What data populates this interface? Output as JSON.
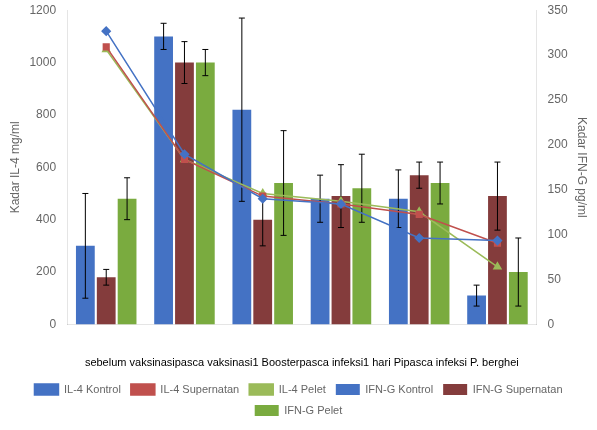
{
  "chart_data": {
    "type": "bar",
    "categories": [
      null,
      null,
      null,
      null,
      null,
      null
    ],
    "annotation": "sebelum vaksinasipasca vaksinasi1 Boosterpasca infeksi1 hari Pipasca infeksi P. berghei",
    "ylabel": "Kadar IL-4 mg/ml",
    "y2label": "Kadar IFN-G pg/ml",
    "ylim": [
      0,
      1200
    ],
    "yticks": [
      0,
      200,
      400,
      600,
      800,
      1000,
      1200
    ],
    "y2lim": [
      0,
      350
    ],
    "y2ticks": [
      0,
      50,
      100,
      150,
      200,
      250,
      300,
      350
    ],
    "grid": false,
    "legend": "bottom",
    "series": [
      {
        "name": "IFN-G Kontrol",
        "type": "bar",
        "color": "#4472C4",
        "values": [
          300,
          1100,
          820,
          480,
          480,
          110
        ],
        "errors": [
          200,
          50,
          350,
          90,
          110,
          40
        ]
      },
      {
        "name": "IFN-G Supernatan",
        "type": "bar",
        "color": "#843C3C",
        "values": [
          180,
          1000,
          400,
          490,
          570,
          490
        ],
        "errors": [
          30,
          80,
          100,
          120,
          50,
          130
        ]
      },
      {
        "name": "IFN-G Pelet",
        "type": "bar",
        "color": "#7AAB3F",
        "values": [
          480,
          1000,
          540,
          520,
          540,
          200
        ],
        "errors": [
          80,
          50,
          200,
          130,
          80,
          130
        ]
      },
      {
        "name": "IL-4 Kontrol",
        "type": "line",
        "color": "#4472C4",
        "marker": "diamond",
        "values": [
          1120,
          650,
          480,
          460,
          330,
          320
        ]
      },
      {
        "name": "IL-4 Supernatan",
        "type": "line",
        "color": "#C0504D",
        "marker": "square",
        "values": [
          1060,
          630,
          490,
          460,
          420,
          310
        ]
      },
      {
        "name": "IL-4 Pelet",
        "type": "line",
        "color": "#9BBB59",
        "marker": "triangle",
        "values": [
          1050,
          630,
          500,
          470,
          430,
          220
        ]
      }
    ]
  }
}
